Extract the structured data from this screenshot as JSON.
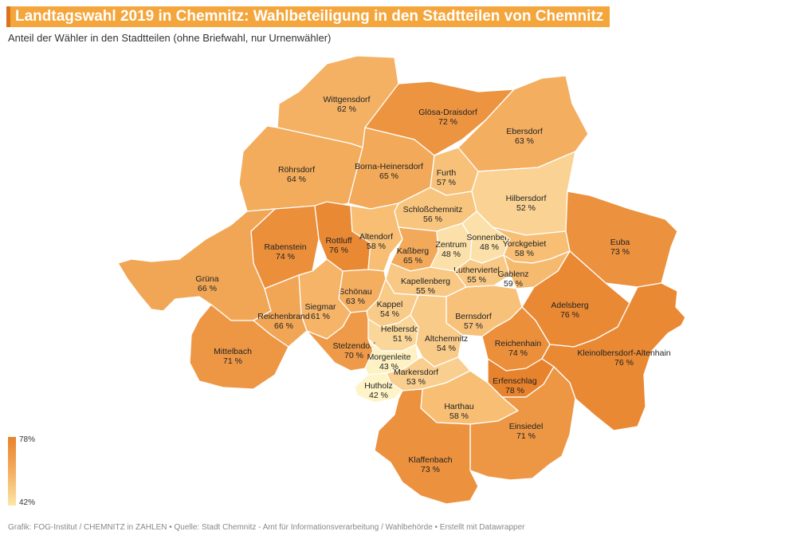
{
  "header": {
    "title": "Landtagswahl 2019 in Chemnitz: Wahlbeteiligung in den Stadtteilen von Chemnitz",
    "subtitle": "Anteil der Wähler in den Stadtteilen (ohne Briefwahl, nur Urnenwähler)"
  },
  "colors": {
    "title_bg": "#f4a63c",
    "title_accent": "#d9731d",
    "scale_min": "#fef4c8",
    "scale_mid": "#f6b76a",
    "scale_max": "#e8832d"
  },
  "legend": {
    "max_label": "78%",
    "min_label": "42%",
    "max_value": 78,
    "min_value": 42
  },
  "districts": [
    {
      "name": "Wittgensdorf",
      "value_label": "62 %",
      "value": 62
    },
    {
      "name": "Glösa-Draisdorf",
      "value_label": "72 %",
      "value": 72
    },
    {
      "name": "Ebersdorf",
      "value_label": "63 %",
      "value": 63
    },
    {
      "name": "Röhrsdorf",
      "value_label": "64 %",
      "value": 64
    },
    {
      "name": "Borna-Heinersdorf",
      "value_label": "65 %",
      "value": 65
    },
    {
      "name": "Furth",
      "value_label": "57 %",
      "value": 57
    },
    {
      "name": "Hilbersdorf",
      "value_label": "52 %",
      "value": 52
    },
    {
      "name": "Schloßchemnitz",
      "value_label": "56 %",
      "value": 56
    },
    {
      "name": "Rabenstein",
      "value_label": "74 %",
      "value": 74
    },
    {
      "name": "Rottluff",
      "value_label": "76 %",
      "value": 76
    },
    {
      "name": "Altendorf",
      "value_label": "58 %",
      "value": 58
    },
    {
      "name": "Kaßberg",
      "value_label": "65 %",
      "value": 65
    },
    {
      "name": "Zentrum",
      "value_label": "48 %",
      "value": 48
    },
    {
      "name": "Sonnenberg",
      "value_label": "48 %",
      "value": 48
    },
    {
      "name": "Yorckgebiet",
      "value_label": "58 %",
      "value": 58
    },
    {
      "name": "Euba",
      "value_label": "73 %",
      "value": 73
    },
    {
      "name": "Grüna",
      "value_label": "66 %",
      "value": 66
    },
    {
      "name": "Lutherviertel",
      "value_label": "55 %",
      "value": 55
    },
    {
      "name": "Gablenz",
      "value_label": "59 %",
      "value": 59
    },
    {
      "name": "Kapellenberg",
      "value_label": "55 %",
      "value": 55
    },
    {
      "name": "Schönau",
      "value_label": "63 %",
      "value": 63
    },
    {
      "name": "Siegmar",
      "value_label": "61 %",
      "value": 61
    },
    {
      "name": "Kappel",
      "value_label": "54 %",
      "value": 54
    },
    {
      "name": "Adelsberg",
      "value_label": "76 %",
      "value": 76
    },
    {
      "name": "Reichenbrand",
      "value_label": "66 %",
      "value": 66
    },
    {
      "name": "Bernsdorf",
      "value_label": "57 %",
      "value": 57
    },
    {
      "name": "Helbersdorf",
      "value_label": "51 %",
      "value": 51
    },
    {
      "name": "Altchemnitz",
      "value_label": "54 %",
      "value": 54
    },
    {
      "name": "Reichenhain",
      "value_label": "74 %",
      "value": 74
    },
    {
      "name": "Kleinolbersdorf-Altenhain",
      "value_label": "76 %",
      "value": 76
    },
    {
      "name": "Mittelbach",
      "value_label": "71 %",
      "value": 71
    },
    {
      "name": "Stelzendorf",
      "value_label": "70 %",
      "value": 70
    },
    {
      "name": "Morgenleite",
      "value_label": "43 %",
      "value": 43
    },
    {
      "name": "Markersdorf",
      "value_label": "53 %",
      "value": 53
    },
    {
      "name": "Erfenschlag",
      "value_label": "78 %",
      "value": 78
    },
    {
      "name": "Hutholz",
      "value_label": "42 %",
      "value": 42
    },
    {
      "name": "Harthau",
      "value_label": "58 %",
      "value": 58
    },
    {
      "name": "Einsiedel",
      "value_label": "71 %",
      "value": 71
    },
    {
      "name": "Klaffenbach",
      "value_label": "73 %",
      "value": 73
    }
  ],
  "footer": {
    "credits": "Grafik: FOG-Institut / CHEMNITZ in ZAHLEN • Quelle: Stadt Chemnitz - Amt für Informationsverarbeitung / Wahlbehörde • Erstellt mit Datawrapper"
  }
}
